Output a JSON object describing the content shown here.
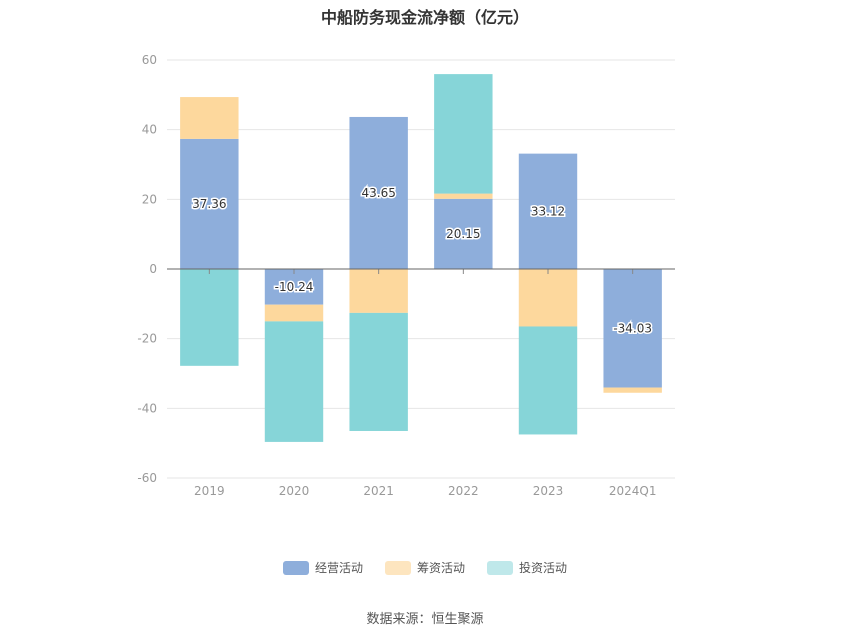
{
  "chart_data": {
    "type": "bar",
    "stacked": true,
    "title": "中船防务现金流净额（亿元）",
    "categories": [
      "2019",
      "2020",
      "2021",
      "2022",
      "2023",
      "2024Q1"
    ],
    "ylim": [
      -60,
      60
    ],
    "yticks": [
      60,
      40,
      20,
      0,
      -20,
      -40,
      -60
    ],
    "grid": true,
    "legend_position": "bottom",
    "series": [
      {
        "name": "经营活动",
        "color": "#8eaedb",
        "values": [
          37.36,
          -10.24,
          43.65,
          20.15,
          33.12,
          -34.03
        ],
        "labels": [
          "37.36",
          "-10.24",
          "43.65",
          "20.15",
          "33.12",
          "-34.03"
        ]
      },
      {
        "name": "筹资活动",
        "color": "#fdd89d",
        "values": [
          12.0,
          -4.8,
          -12.6,
          1.5,
          -16.5,
          -1.5
        ]
      },
      {
        "name": "投资活动",
        "color": "#86d5d8",
        "values": [
          -27.8,
          -34.6,
          -33.9,
          34.3,
          -31.0,
          0
        ]
      }
    ]
  },
  "source_text": "数据来源：恒生聚源"
}
